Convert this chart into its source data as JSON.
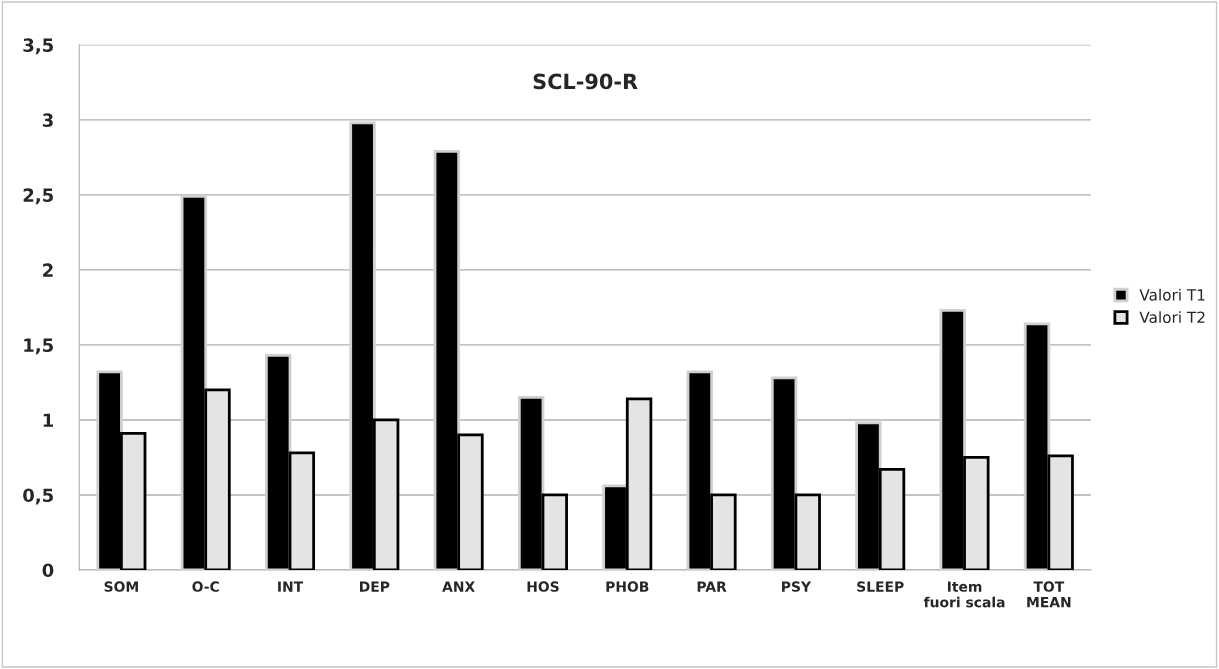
{
  "chart_data": {
    "type": "bar",
    "title": "SCL-90-R",
    "categories": [
      "SOM",
      "O-C",
      "INT",
      "DEP",
      "ANX",
      "HOS",
      "PHOB",
      "PAR",
      "PSY",
      "SLEEP",
      "Item fuori scala",
      "TOT MEAN"
    ],
    "series": [
      {
        "name": "Valori T1",
        "color": "#000000",
        "values": [
          1.32,
          2.49,
          1.43,
          2.98,
          2.79,
          1.15,
          0.56,
          1.32,
          1.28,
          0.98,
          1.73,
          1.64
        ]
      },
      {
        "name": "Valori T2",
        "color": "#e4e4e4",
        "values": [
          0.91,
          1.2,
          0.78,
          1.0,
          0.9,
          0.5,
          1.14,
          0.5,
          0.5,
          0.67,
          0.75,
          0.76
        ]
      }
    ],
    "ylim": [
      0,
      3.5
    ],
    "yticks": [
      0,
      {
        "value": 0.5,
        "label": "0,5"
      },
      1,
      {
        "value": 1.5,
        "label": "1,5"
      },
      2,
      {
        "value": 2.5,
        "label": "2,5"
      },
      3,
      {
        "value": 3.5,
        "label": "3,5"
      }
    ],
    "grid": "y",
    "legend": "right"
  }
}
